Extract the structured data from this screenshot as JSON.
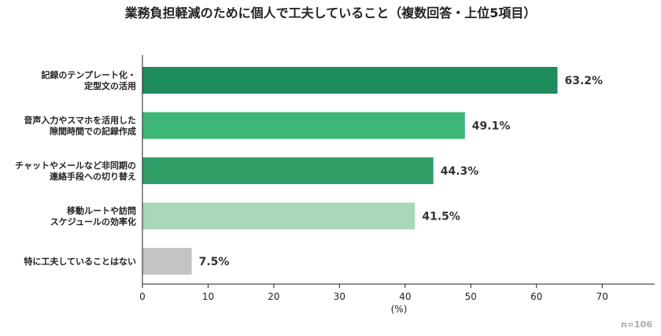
{
  "chart_data": {
    "type": "bar",
    "orientation": "horizontal",
    "title": "業務負担軽減のために個人で工夫していること（複数回答・上位5項目）",
    "categories": [
      [
        "記録のテンプレート化・",
        "定型文の活用"
      ],
      [
        "音声入力やスマホを活用した",
        "隙間時間での記録作成"
      ],
      [
        "チャットやメールなど非同期の",
        "連絡手段への切り替え"
      ],
      [
        "移動ルートや訪問",
        "スケジュールの効率化"
      ],
      [
        "特に工夫していることはない"
      ]
    ],
    "values": [
      63.2,
      49.1,
      44.3,
      41.5,
      7.5
    ],
    "value_labels": [
      "63.2%",
      "49.1%",
      "44.3%",
      "41.5%",
      "7.5%"
    ],
    "colors": [
      "#1e8c5c",
      "#3db877",
      "#2f9e66",
      "#a8d8b9",
      "#c4c4c4"
    ],
    "xlabel": "(%)",
    "xlim": [
      0,
      78
    ],
    "xticks": [
      0,
      10,
      20,
      30,
      40,
      50,
      60,
      70
    ],
    "grid": false,
    "note": "n=106"
  }
}
